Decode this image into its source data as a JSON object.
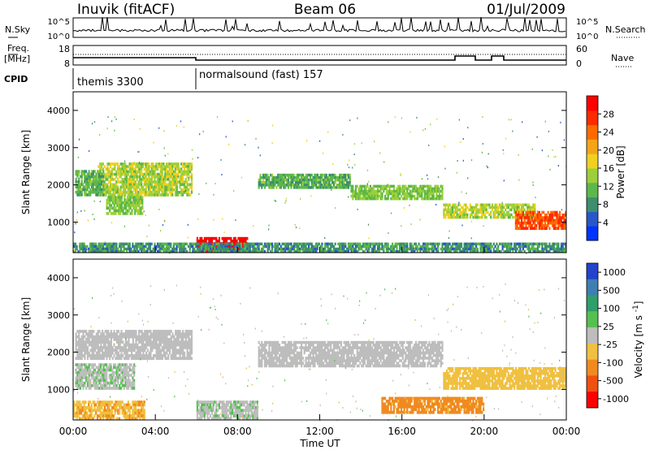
{
  "header": {
    "station": "Inuvik (fitACF)",
    "beam": "Beam 06",
    "date": "01/Jul/2009"
  },
  "top_panels": {
    "nsky_label": "N.Sky",
    "nsky_ticks": [
      "10^5",
      "10^0"
    ],
    "nsearch_label": "N.Search",
    "nsearch_ticks": [
      "10^5",
      "10^0"
    ],
    "freq_label_1": "Freq.",
    "freq_label_2": "[MHz]",
    "freq_ticks": [
      "18",
      "8"
    ],
    "nave_label": "Nave",
    "nave_ticks": [
      "60",
      "0"
    ],
    "cpid_label": "CPID",
    "cpid_segments": [
      {
        "label": "themis 3300",
        "start_hour": 0
      },
      {
        "label": "normalsound (fast) 157",
        "start_hour": 6
      }
    ]
  },
  "chart_data": [
    {
      "type": "heatmap",
      "title": "Power",
      "xlabel": "",
      "ylabel": "Slant Range [km]",
      "x_ticks": [
        "00:00",
        "04:00",
        "08:00",
        "12:00",
        "16:00",
        "20:00",
        "00:00"
      ],
      "xlim_hours": [
        0,
        24
      ],
      "y_ticks": [
        "1000",
        "2000",
        "3000",
        "4000"
      ],
      "ylim": [
        180,
        4500
      ],
      "colorbar": {
        "label": "Power [dB]",
        "ticks": [
          "4",
          "8",
          "12",
          "16",
          "20",
          "24",
          "28"
        ],
        "range": [
          0,
          30
        ],
        "colors": [
          "#0033ff",
          "#2a57c8",
          "#3d8f6e",
          "#5cb84a",
          "#9ccf3a",
          "#f0d020",
          "#f5a418",
          "#ff6a00",
          "#ff2a00",
          "#ff0000"
        ]
      },
      "bands": [
        {
          "t0": 1.2,
          "t1": 5.8,
          "r0": 1700,
          "r1": 2600,
          "level": 14
        },
        {
          "t0": 0.1,
          "t1": 1.5,
          "r0": 1700,
          "r1": 2400,
          "level": 10
        },
        {
          "t0": 1.6,
          "t1": 3.4,
          "r0": 1200,
          "r1": 1700,
          "level": 12
        },
        {
          "t0": 9.0,
          "t1": 13.5,
          "r0": 1900,
          "r1": 2300,
          "level": 10
        },
        {
          "t0": 13.5,
          "t1": 18.0,
          "r0": 1600,
          "r1": 2000,
          "level": 12
        },
        {
          "t0": 18.0,
          "t1": 22.5,
          "r0": 1100,
          "r1": 1500,
          "level": 14
        },
        {
          "t0": 21.5,
          "t1": 24.0,
          "r0": 800,
          "r1": 1300,
          "level": 24
        },
        {
          "t0": 6.0,
          "t1": 8.5,
          "r0": 180,
          "r1": 600,
          "level": 30
        },
        {
          "t0": 0.0,
          "t1": 24.0,
          "r0": 180,
          "r1": 450,
          "level": 8
        }
      ]
    },
    {
      "type": "heatmap",
      "title": "Velocity",
      "xlabel": "Time UT",
      "ylabel": "Slant Range [km]",
      "x_ticks": [
        "00:00",
        "04:00",
        "08:00",
        "12:00",
        "16:00",
        "20:00",
        "00:00"
      ],
      "xlim_hours": [
        0,
        24
      ],
      "y_ticks": [
        "1000",
        "2000",
        "3000",
        "4000"
      ],
      "ylim": [
        180,
        4500
      ],
      "colorbar": {
        "label": "Velocity [m s^-1]",
        "ticks": [
          "1000",
          "500",
          "100",
          "25",
          "-25",
          "-100",
          "-500",
          "-1000"
        ],
        "range": [
          -1000,
          1000
        ],
        "colors": [
          "#2244cc",
          "#3f7fb0",
          "#2e9e6a",
          "#55c050",
          "#bdbdbd",
          "#f0c040",
          "#f08a20",
          "#f05010",
          "#ff0000"
        ]
      },
      "bands": [
        {
          "t0": 0.1,
          "t1": 5.8,
          "r0": 1800,
          "r1": 2600,
          "level": 0
        },
        {
          "t0": 0.1,
          "t1": 3.0,
          "r0": 1000,
          "r1": 1700,
          "level": 80
        },
        {
          "t0": 9.0,
          "t1": 18.0,
          "r0": 1600,
          "r1": 2300,
          "level": 0
        },
        {
          "t0": 18.0,
          "t1": 24.0,
          "r0": 1000,
          "r1": 1600,
          "level": -200
        },
        {
          "t0": 0.0,
          "t1": 3.5,
          "r0": 180,
          "r1": 700,
          "level": -300
        },
        {
          "t0": 15.0,
          "t1": 20.0,
          "r0": 350,
          "r1": 800,
          "level": -400
        },
        {
          "t0": 6.0,
          "t1": 9.0,
          "r0": 180,
          "r1": 700,
          "level": 60
        }
      ]
    }
  ]
}
